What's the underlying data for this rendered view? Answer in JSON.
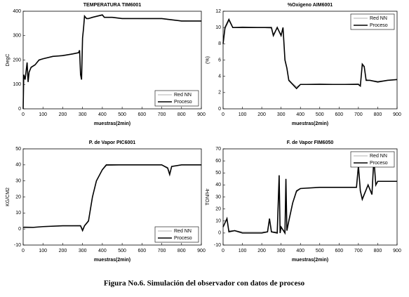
{
  "chart_data": [
    {
      "type": "line",
      "title": "TEMPERATURA TIM6001",
      "xlabel": "muestras(2min)",
      "ylabel": "DegC",
      "xlim": [
        0,
        900
      ],
      "xticks": [
        0,
        100,
        200,
        300,
        400,
        500,
        600,
        700,
        800,
        900
      ],
      "ylim": [
        0,
        400
      ],
      "yticks": [
        0,
        100,
        200,
        300,
        400
      ],
      "legend": "lower right",
      "x": [
        0,
        3,
        10,
        20,
        25,
        30,
        40,
        60,
        80,
        100,
        150,
        200,
        250,
        280,
        285,
        290,
        295,
        300,
        305,
        310,
        320,
        330,
        350,
        400,
        410,
        450,
        500,
        600,
        700,
        750,
        800,
        900
      ],
      "series": [
        {
          "name": "Red NN",
          "color": "#999999",
          "values": [
            5,
            138,
            122,
            188,
            112,
            148,
            172,
            182,
            198,
            206,
            214,
            220,
            226,
            231,
            238,
            142,
            125,
            288,
            328,
            378,
            372,
            369,
            376,
            383,
            376,
            374,
            371,
            369,
            369,
            364,
            361,
            359
          ]
        },
        {
          "name": "Proceso",
          "color": "#000000",
          "values": [
            0,
            140,
            120,
            190,
            110,
            150,
            170,
            180,
            200,
            205,
            215,
            218,
            225,
            230,
            240,
            140,
            120,
            290,
            330,
            380,
            370,
            370,
            375,
            385,
            375,
            375,
            370,
            370,
            370,
            365,
            360,
            360
          ]
        }
      ]
    },
    {
      "type": "line",
      "title": "%Oxigeno AIM6001",
      "xlabel": "muestras(2min)",
      "ylabel": "(%)",
      "xlim": [
        0,
        900
      ],
      "xticks": [
        0,
        100,
        200,
        300,
        400,
        500,
        600,
        700,
        800,
        900
      ],
      "ylim": [
        0,
        12
      ],
      "yticks": [
        0,
        2,
        4,
        6,
        8,
        10,
        12
      ],
      "legend": "upper right",
      "x": [
        0,
        10,
        30,
        50,
        100,
        200,
        250,
        260,
        280,
        300,
        310,
        320,
        330,
        340,
        360,
        380,
        400,
        500,
        600,
        700,
        710,
        720,
        730,
        740,
        760,
        800,
        850,
        900
      ],
      "series": [
        {
          "name": "Red NN",
          "color": "#999999",
          "values": [
            8.2,
            9.8,
            10.8,
            10,
            10.1,
            10,
            9.9,
            9.2,
            9.9,
            9.2,
            9.8,
            6.2,
            5.1,
            3.6,
            3.1,
            2.7,
            3,
            3.1,
            3,
            3.1,
            2.9,
            5.3,
            5.1,
            3.6,
            3.5,
            3.4,
            3.5,
            3.6
          ]
        },
        {
          "name": "Proceso",
          "color": "#000000",
          "values": [
            8,
            10,
            11,
            10,
            10,
            10,
            10,
            9,
            10,
            9,
            10,
            6,
            5,
            3.5,
            3,
            2.5,
            3,
            3,
            3,
            3,
            2.8,
            5.5,
            5.2,
            3.5,
            3.5,
            3.3,
            3.5,
            3.6
          ]
        }
      ]
    },
    {
      "type": "line",
      "title": "P. de Vapor PIC6001",
      "xlabel": "muestras(2min)",
      "ylabel": "KG/CM2",
      "xlim": [
        0,
        900
      ],
      "xticks": [
        0,
        100,
        200,
        300,
        400,
        500,
        600,
        700,
        800,
        900
      ],
      "ylim": [
        -10,
        50
      ],
      "yticks": [
        -10,
        0,
        10,
        20,
        30,
        40,
        50
      ],
      "legend": "lower right",
      "x": [
        0,
        50,
        100,
        200,
        290,
        300,
        310,
        330,
        350,
        370,
        400,
        420,
        500,
        600,
        700,
        730,
        740,
        750,
        800,
        900
      ],
      "series": [
        {
          "name": "Red NN",
          "color": "#999999",
          "values": [
            1.5,
            1.2,
            1.4,
            2,
            2.2,
            0,
            2.2,
            5.5,
            20,
            30,
            37,
            39.5,
            40,
            40,
            40,
            38.5,
            35,
            39,
            40,
            40
          ]
        },
        {
          "name": "Proceso",
          "color": "#000000",
          "values": [
            1,
            1,
            1.5,
            2,
            2,
            -1,
            2,
            5,
            20,
            30,
            37,
            40,
            40,
            40,
            40,
            38,
            34,
            39,
            40,
            40
          ]
        }
      ]
    },
    {
      "type": "line",
      "title": "F. de Vapor FIM6050",
      "xlabel": "muestras(2min)",
      "ylabel": "TON/Hr",
      "xlim": [
        0,
        900
      ],
      "xticks": [
        0,
        100,
        200,
        300,
        400,
        500,
        600,
        700,
        800,
        900
      ],
      "ylim": [
        -10,
        70
      ],
      "yticks": [
        -10,
        0,
        10,
        20,
        30,
        40,
        50,
        60,
        70
      ],
      "legend": "upper right",
      "x": [
        0,
        20,
        30,
        60,
        100,
        200,
        230,
        240,
        250,
        280,
        290,
        295,
        300,
        320,
        325,
        330,
        340,
        360,
        380,
        400,
        500,
        600,
        690,
        700,
        710,
        720,
        750,
        770,
        780,
        790,
        800,
        900
      ],
      "series": [
        {
          "name": "Red NN",
          "color": "#999999",
          "values": [
            6,
            11,
            2,
            2,
            1,
            1,
            1,
            11,
            1,
            1,
            46,
            1,
            5,
            1,
            43,
            3,
            11,
            25,
            34,
            37,
            38,
            38,
            38,
            54,
            36,
            29,
            40,
            33,
            60,
            40,
            43,
            43
          ]
        },
        {
          "name": "Proceso",
          "color": "#000000",
          "values": [
            5,
            12,
            1,
            2,
            0,
            0,
            1,
            12,
            1,
            0,
            48,
            0,
            5,
            0,
            45,
            2,
            10,
            25,
            35,
            37,
            38,
            38,
            38,
            56,
            35,
            28,
            40,
            32,
            62,
            40,
            43,
            43
          ]
        }
      ]
    }
  ],
  "caption": "Figura No.6. Simulación del observador con datos de proceso"
}
